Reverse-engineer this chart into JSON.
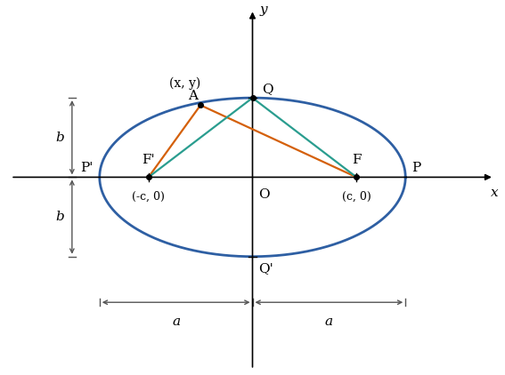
{
  "a": 2.5,
  "b": 1.3,
  "c": 1.7,
  "ellipse_color": "#2e5fa3",
  "ellipse_linewidth": 2.0,
  "line_color_orange": "#d4600a",
  "line_color_teal": "#2a9d8f",
  "line_linewidth": 1.6,
  "axis_color": "#000000",
  "point_A": [
    -0.85,
    1.18
  ],
  "point_Q": [
    0.0,
    1.3
  ],
  "point_F_prime": [
    -1.7,
    0.0
  ],
  "point_F": [
    1.7,
    0.0
  ],
  "annotation_fontsize": 11,
  "background_color": "#ffffff",
  "xlim": [
    -4.0,
    4.0
  ],
  "ylim": [
    -3.2,
    2.8
  ],
  "arrow_color": "#555555"
}
